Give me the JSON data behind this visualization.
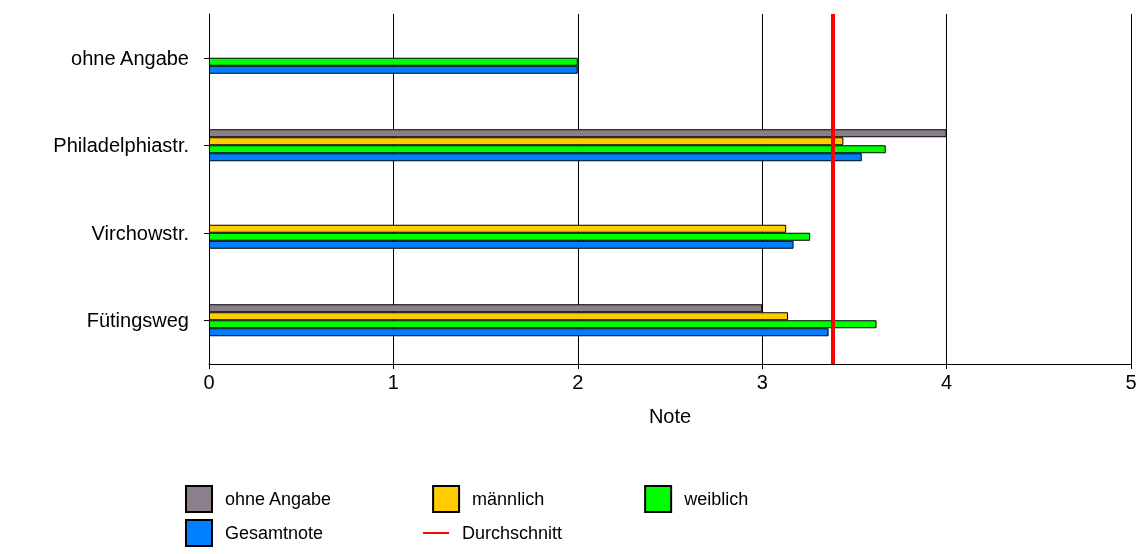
{
  "chart_data": {
    "type": "bar",
    "orientation": "horizontal",
    "categories": [
      "ohne Angabe",
      "Philadelphiastr.",
      "Virchowstr.",
      "Fütingsweg"
    ],
    "series": [
      {
        "name": "ohne Angabe",
        "color": "#8b7f8b",
        "values": [
          null,
          4,
          null,
          3
        ]
      },
      {
        "name": "männlich",
        "color": "#ffcc00",
        "values": [
          null,
          3.44,
          3.13,
          3.14
        ]
      },
      {
        "name": "weiblich",
        "color": "#00ff00",
        "values": [
          2,
          3.67,
          3.26,
          3.62
        ]
      },
      {
        "name": "Gesamtnote",
        "color": "#0080ff",
        "values": [
          2,
          3.54,
          3.17,
          3.36
        ]
      }
    ],
    "xlabel": "Note",
    "xlim": [
      0,
      5
    ],
    "xticks": [
      0,
      1,
      2,
      3,
      4,
      5
    ],
    "grid": "x",
    "legend": "bottom",
    "ref_lines": [
      {
        "axis": "x",
        "value": 3.38,
        "label": "Durchschnitt",
        "color": "#ff0000"
      }
    ]
  }
}
